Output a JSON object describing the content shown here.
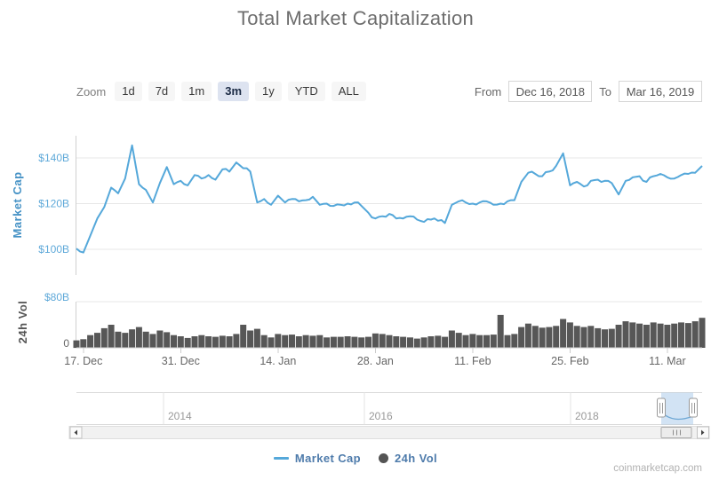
{
  "title": "Total Market Capitalization",
  "toolbar": {
    "zoom_label": "Zoom",
    "zoom_buttons": [
      "1d",
      "7d",
      "1m",
      "3m",
      "1y",
      "YTD",
      "ALL"
    ],
    "selected_zoom": "3m",
    "from_label": "From",
    "from_value": "Dec 16, 2018",
    "to_label": "To",
    "to_value": "Mar 16, 2019"
  },
  "chart_data": [
    {
      "type": "line",
      "name": "Market Cap",
      "unit": "USD billions",
      "start_date": "2018-12-16",
      "end_date": "2019-03-16",
      "interval": "daily",
      "ylabel": "Market Cap",
      "ytick_labels": [
        "$100B",
        "$120B",
        "$140B"
      ],
      "ytick_values": [
        100,
        120,
        140
      ],
      "ylim": [
        88,
        150
      ],
      "xtick_labels": [
        "17. Dec",
        "31. Dec",
        "14. Jan",
        "28. Jan",
        "11. Feb",
        "25. Feb",
        "11. Mar"
      ],
      "xtick_day_offsets": [
        1,
        15,
        29,
        43,
        57,
        71,
        85
      ],
      "grid": true,
      "color": "#55a8da",
      "values": [
        100.3,
        98.6,
        106,
        113.5,
        118.5,
        127,
        124.5,
        131,
        145.5,
        128.5,
        126,
        120.5,
        129,
        136,
        128.5,
        130,
        128,
        132.5,
        131,
        132.5,
        130.5,
        135,
        134,
        138,
        135.5,
        134,
        120.5,
        122,
        119.5,
        123.5,
        120.5,
        122,
        121,
        121.5,
        123,
        119.5,
        120,
        119,
        119.5,
        120,
        120.5,
        119,
        116,
        113.5,
        114.5,
        115.5,
        113.5,
        113.5,
        114.5,
        113,
        112,
        113,
        112.5,
        111.5,
        119.5,
        121,
        120.5,
        120,
        120.5,
        121,
        119.5,
        120,
        121,
        121.5,
        129.5,
        133.5,
        133,
        132,
        134,
        136.5,
        142,
        128,
        129.5,
        127.5,
        130,
        130.5,
        130,
        129,
        124,
        130,
        131.5,
        132,
        129.5,
        132,
        133,
        131.5,
        131,
        132.5,
        133,
        133.5,
        136.5
      ]
    },
    {
      "type": "bar",
      "name": "24h Vol",
      "unit": "USD billions",
      "start_date": "2018-12-16",
      "end_date": "2019-03-16",
      "interval": "daily",
      "ylabel": "24h Vol",
      "ytick_labels": [
        "0",
        "$80B"
      ],
      "ytick_values": [
        0,
        80
      ],
      "ylim": [
        0,
        80
      ],
      "grid": true,
      "color": "#575757",
      "values": [
        13,
        15,
        22,
        26,
        34,
        40,
        28,
        26,
        32,
        36,
        28,
        24,
        30,
        27,
        22,
        20,
        17,
        20,
        22,
        20,
        19,
        21,
        20,
        24,
        40,
        30,
        33,
        22,
        18,
        24,
        22,
        23,
        20,
        22,
        21,
        22,
        18,
        19,
        19,
        20,
        19,
        18,
        19,
        25,
        24,
        22,
        20,
        19,
        18,
        16,
        18,
        20,
        21,
        19,
        30,
        26,
        22,
        24,
        22,
        22,
        23,
        57,
        22,
        24,
        36,
        42,
        38,
        35,
        36,
        38,
        50,
        44,
        38,
        36,
        38,
        34,
        32,
        33,
        40,
        46,
        44,
        42,
        40,
        44,
        42,
        40,
        42,
        44,
        43,
        46,
        52
      ]
    }
  ],
  "navigator": {
    "year_labels": [
      "2014",
      "2016",
      "2018"
    ],
    "selected_range_start": "Dec 16, 2018",
    "selected_range_end": "Mar 16, 2019"
  },
  "legend": {
    "items": [
      {
        "label": "Market Cap",
        "marker": "line",
        "color": "#55a8da"
      },
      {
        "label": "24h Vol",
        "marker": "circle",
        "color": "#545454"
      }
    ]
  },
  "attribution": "coinmarketcap.com",
  "colors": {
    "line_blue": "#55a8da",
    "axis_tick_blue": "#5fa9d9",
    "axis_title_blue": "#4793c6",
    "volume_gray": "#575757",
    "legend_text_blue": "#4e7bab",
    "selected_zoom_bg": "#dde3f0",
    "gridline": "#e7e7e7"
  }
}
